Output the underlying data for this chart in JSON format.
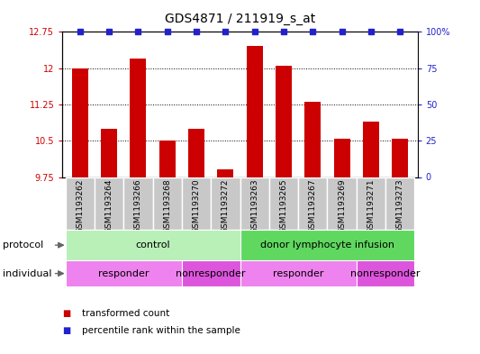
{
  "title": "GDS4871 / 211919_s_at",
  "samples": [
    "GSM1193262",
    "GSM1193264",
    "GSM1193266",
    "GSM1193268",
    "GSM1193270",
    "GSM1193272",
    "GSM1193263",
    "GSM1193265",
    "GSM1193267",
    "GSM1193269",
    "GSM1193271",
    "GSM1193273"
  ],
  "bar_values": [
    12.0,
    10.75,
    12.2,
    10.5,
    10.75,
    9.9,
    12.45,
    12.05,
    11.3,
    10.55,
    10.9,
    10.55
  ],
  "percentile_values": [
    100,
    100,
    100,
    100,
    100,
    100,
    100,
    100,
    100,
    100,
    100,
    100
  ],
  "ylim_left": [
    9.75,
    12.75
  ],
  "ylim_right": [
    0,
    100
  ],
  "yticks_left": [
    9.75,
    10.5,
    11.25,
    12.0,
    12.75
  ],
  "yticks_right": [
    0,
    25,
    50,
    75,
    100
  ],
  "ytick_labels_left": [
    "9.75",
    "10.5",
    "11.25",
    "12",
    "12.75"
  ],
  "ytick_labels_right": [
    "0",
    "25",
    "50",
    "75",
    "100%"
  ],
  "bar_color": "#cc0000",
  "percentile_color": "#2222cc",
  "grid_color": "#000000",
  "protocol_groups": [
    {
      "label": "control",
      "start": 0,
      "end": 5,
      "color": "#b8f0b8"
    },
    {
      "label": "donor lymphocyte infusion",
      "start": 6,
      "end": 11,
      "color": "#60d860"
    }
  ],
  "individual_groups": [
    {
      "label": "responder",
      "start": 0,
      "end": 3,
      "color": "#ee82ee"
    },
    {
      "label": "nonresponder",
      "start": 4,
      "end": 5,
      "color": "#dd55dd"
    },
    {
      "label": "responder",
      "start": 6,
      "end": 9,
      "color": "#ee82ee"
    },
    {
      "label": "nonresponder",
      "start": 10,
      "end": 11,
      "color": "#dd55dd"
    }
  ],
  "legend_items": [
    {
      "label": "transformed count",
      "color": "#cc0000"
    },
    {
      "label": "percentile rank within the sample",
      "color": "#2222cc"
    }
  ],
  "title_fontsize": 10,
  "tick_fontsize": 7,
  "label_fontsize": 8,
  "sample_fontsize": 6.5
}
